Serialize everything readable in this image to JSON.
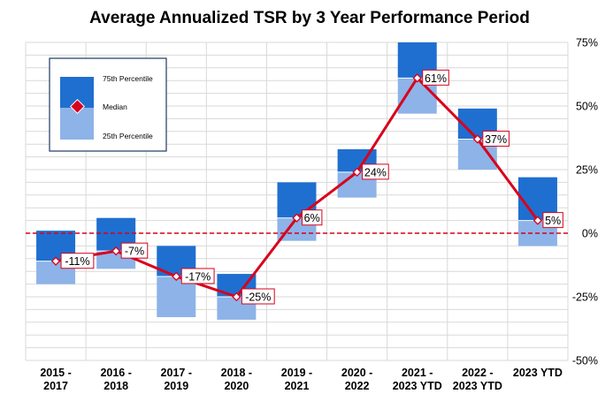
{
  "colors": {
    "upper": "#1F6FD0",
    "lower": "#8DB3E8",
    "median": "#D9001B",
    "zero_line": "#D9001B",
    "grid": "#D9D9D9"
  },
  "chart_data": {
    "type": "bar",
    "title": "Average Annualized TSR by 3 Year Performance Period",
    "categories": [
      [
        "2015 -",
        "2017"
      ],
      [
        "2016 -",
        "2018"
      ],
      [
        "2017 -",
        "2019"
      ],
      [
        "2018 -",
        "2020"
      ],
      [
        "2019 -",
        "2021"
      ],
      [
        "2020 -",
        "2022"
      ],
      [
        "2021 -",
        "2023 YTD"
      ],
      [
        "2022 -",
        "2023 YTD"
      ],
      [
        "2023 YTD"
      ]
    ],
    "p75": [
      1,
      6,
      -5,
      -16,
      20,
      33,
      75,
      49,
      22
    ],
    "median": [
      -11,
      -7,
      -17,
      -25,
      6,
      24,
      61,
      37,
      5
    ],
    "p25": [
      -20,
      -14,
      -33,
      -34,
      -3,
      14,
      47,
      25,
      -5
    ],
    "median_labels": [
      "-11%",
      "-7%",
      "-17%",
      "-25%",
      "6%",
      "24%",
      "61%",
      "37%",
      "5%"
    ],
    "ylim": [
      -50,
      75
    ],
    "yticks": [
      75,
      50,
      25,
      0,
      -25,
      -50
    ],
    "ytick_labels": [
      "75%",
      "50%",
      "25%",
      "0%",
      "-25%",
      "-50%"
    ],
    "y_axis_side": "right",
    "grid": true,
    "reference_line": 0,
    "legend": {
      "position": "top-left",
      "entries": [
        "75th Percentile",
        "Median",
        "25th Percentile"
      ]
    }
  }
}
